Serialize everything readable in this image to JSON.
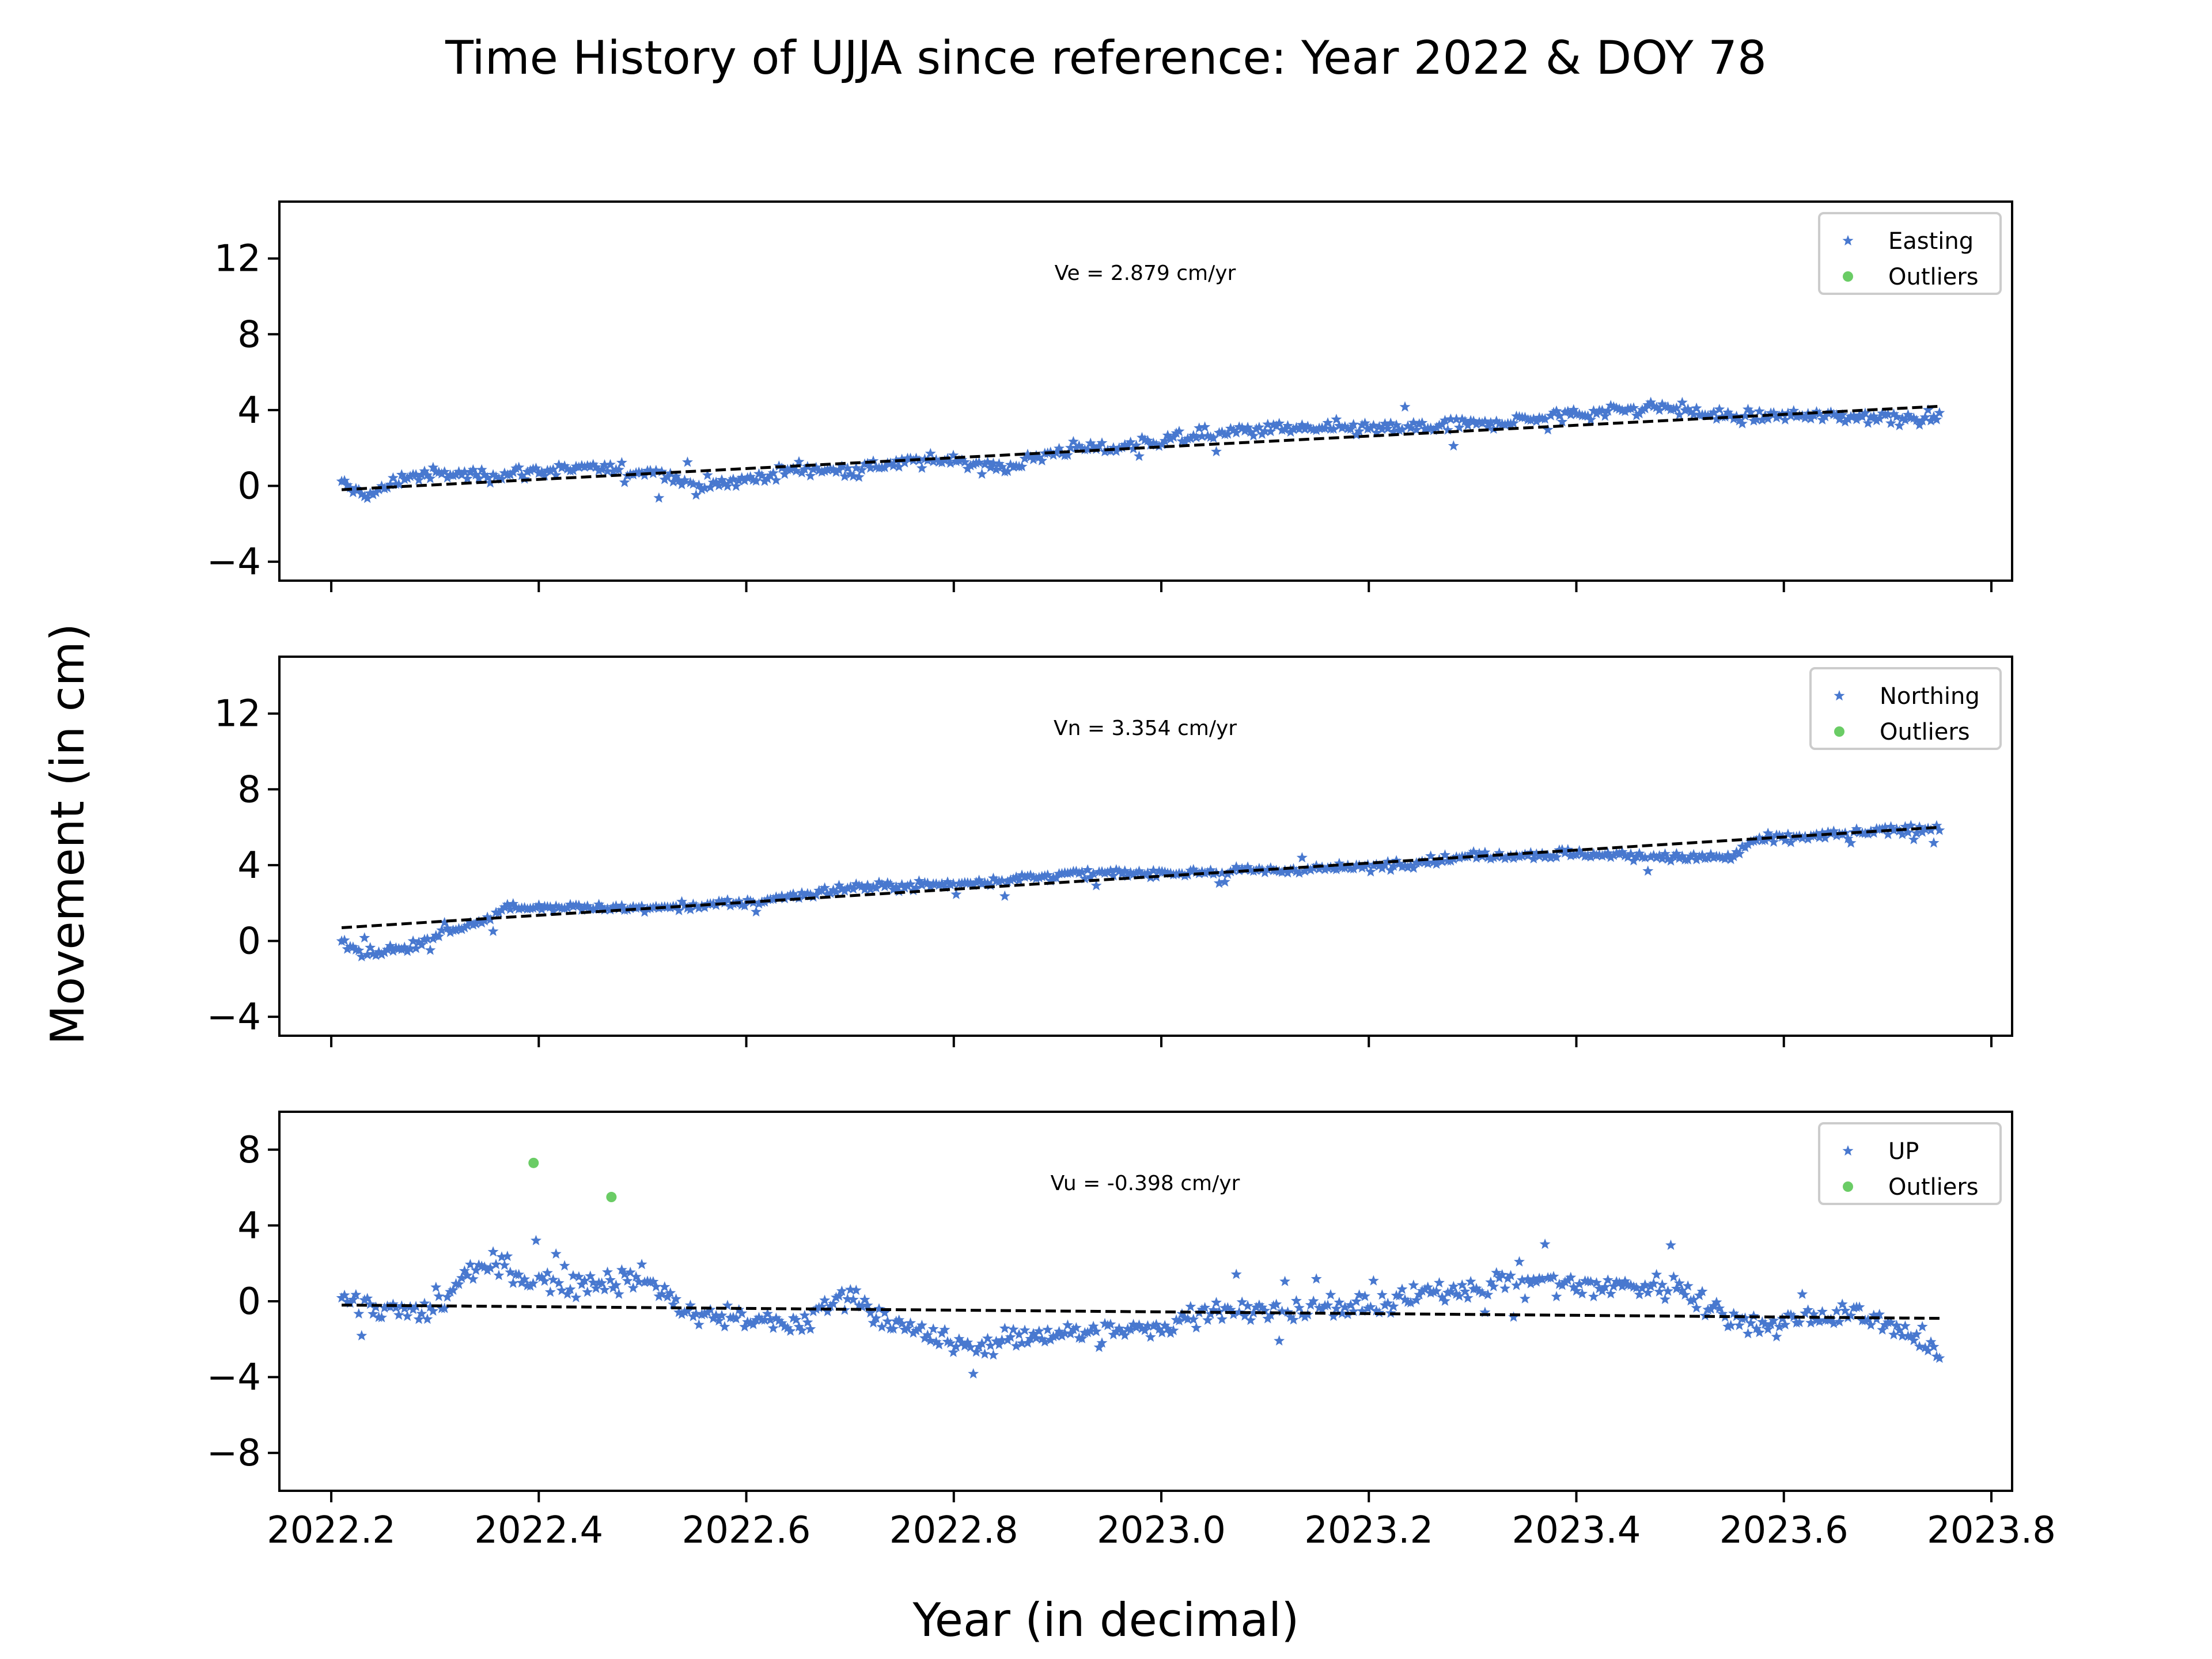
{
  "title": "Time History of UJJA since reference: Year 2022 & DOY 78",
  "xlabel": "Year (in decimal)",
  "ylabel": "Movement (in cm)",
  "colors": {
    "series": "#4878cf",
    "outlier": "#6acc65",
    "trend": "#000000"
  },
  "chart_data": [
    {
      "type": "scatter",
      "series_name": "Easting",
      "outlier_name": "Outliers",
      "annotation": "Ve =  2.879 cm/yr",
      "xlim": [
        2022.15,
        2023.82
      ],
      "ylim": [
        -5,
        15
      ],
      "yticks": [
        -4,
        0,
        4,
        8,
        12
      ],
      "x_start": 2022.21,
      "x_end": 2023.75,
      "trend": [
        [
          2022.21,
          -0.2
        ],
        [
          2023.75,
          4.2
        ]
      ],
      "profile": [
        [
          2022.21,
          0
        ],
        [
          2022.24,
          -0.5
        ],
        [
          2022.27,
          0.5
        ],
        [
          2022.3,
          0.6
        ],
        [
          2022.36,
          0.6
        ],
        [
          2022.4,
          0.8
        ],
        [
          2022.45,
          0.9
        ],
        [
          2022.52,
          0.7
        ],
        [
          2022.55,
          0.0
        ],
        [
          2022.6,
          0.3
        ],
        [
          2022.65,
          0.9
        ],
        [
          2022.7,
          0.8
        ],
        [
          2022.75,
          1.2
        ],
        [
          2022.8,
          1.4
        ],
        [
          2022.85,
          0.9
        ],
        [
          2022.9,
          1.9
        ],
        [
          2022.95,
          2.0
        ],
        [
          2023.0,
          2.4
        ],
        [
          2023.1,
          3.0
        ],
        [
          2023.2,
          3.0
        ],
        [
          2023.3,
          3.2
        ],
        [
          2023.4,
          3.8
        ],
        [
          2023.48,
          4.2
        ],
        [
          2023.55,
          3.6
        ],
        [
          2023.6,
          3.7
        ],
        [
          2023.75,
          3.6
        ]
      ],
      "noise": 0.45,
      "outliers": []
    },
    {
      "type": "scatter",
      "series_name": "Northing",
      "outlier_name": "Outliers",
      "annotation": "Vn =  3.354 cm/yr",
      "xlim": [
        2022.15,
        2023.82
      ],
      "ylim": [
        -5,
        15
      ],
      "yticks": [
        -4,
        0,
        4,
        8,
        12
      ],
      "x_start": 2022.21,
      "x_end": 2023.75,
      "trend": [
        [
          2022.21,
          0.7
        ],
        [
          2023.75,
          6.0
        ]
      ],
      "profile": [
        [
          2022.21,
          0
        ],
        [
          2022.23,
          -0.7
        ],
        [
          2022.27,
          -0.4
        ],
        [
          2022.3,
          0.2
        ],
        [
          2022.35,
          1.2
        ],
        [
          2022.37,
          1.8
        ],
        [
          2022.4,
          1.8
        ],
        [
          2022.5,
          1.7
        ],
        [
          2022.6,
          2.0
        ],
        [
          2022.7,
          2.8
        ],
        [
          2022.8,
          3.0
        ],
        [
          2022.9,
          3.5
        ],
        [
          2023.0,
          3.6
        ],
        [
          2023.1,
          3.7
        ],
        [
          2023.2,
          3.9
        ],
        [
          2023.3,
          4.5
        ],
        [
          2023.4,
          4.6
        ],
        [
          2023.5,
          4.4
        ],
        [
          2023.55,
          4.4
        ],
        [
          2023.57,
          5.3
        ],
        [
          2023.65,
          5.6
        ],
        [
          2023.75,
          6.0
        ]
      ],
      "noise": 0.3,
      "outliers": []
    },
    {
      "type": "scatter",
      "series_name": "UP",
      "outlier_name": "Outliers",
      "annotation": "Vu = -0.398 cm/yr",
      "xlim": [
        2022.15,
        2023.82
      ],
      "ylim": [
        -10,
        10
      ],
      "yticks": [
        -8,
        -4,
        0,
        4,
        8
      ],
      "x_start": 2022.21,
      "x_end": 2023.75,
      "trend": [
        [
          2022.21,
          -0.2
        ],
        [
          2023.75,
          -0.9
        ]
      ],
      "profile": [
        [
          2022.21,
          0.3
        ],
        [
          2022.25,
          -0.5
        ],
        [
          2022.3,
          -0.6
        ],
        [
          2022.33,
          1.5
        ],
        [
          2022.37,
          1.8
        ],
        [
          2022.4,
          1.0
        ],
        [
          2022.45,
          1.0
        ],
        [
          2022.5,
          1.2
        ],
        [
          2022.55,
          -0.8
        ],
        [
          2022.6,
          -0.9
        ],
        [
          2022.65,
          -1.4
        ],
        [
          2022.7,
          0.5
        ],
        [
          2022.75,
          -1.5
        ],
        [
          2022.8,
          -2.3
        ],
        [
          2022.85,
          -2.1
        ],
        [
          2022.9,
          -1.6
        ],
        [
          2022.95,
          -1.7
        ],
        [
          2023.0,
          -1.4
        ],
        [
          2023.05,
          -0.4
        ],
        [
          2023.1,
          -0.5
        ],
        [
          2023.2,
          -0.3
        ],
        [
          2023.3,
          0.8
        ],
        [
          2023.35,
          1.3
        ],
        [
          2023.4,
          0.8
        ],
        [
          2023.5,
          0.8
        ],
        [
          2023.55,
          -1.0
        ],
        [
          2023.6,
          -1.2
        ],
        [
          2023.65,
          -0.6
        ],
        [
          2023.7,
          -1.1
        ],
        [
          2023.75,
          -2.8
        ]
      ],
      "noise": 0.85,
      "outliers": [
        [
          2022.395,
          7.3
        ],
        [
          2022.47,
          5.5
        ]
      ]
    }
  ],
  "x_ticks": [
    "2022.2",
    "2022.4",
    "2022.6",
    "2022.8",
    "2023.0",
    "2023.2",
    "2023.4",
    "2023.6",
    "2023.8"
  ]
}
